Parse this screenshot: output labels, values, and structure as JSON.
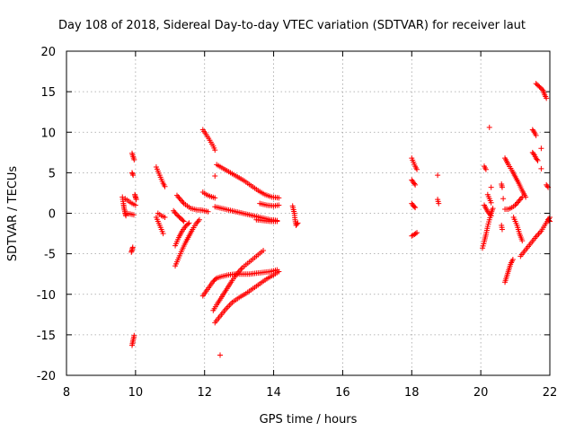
{
  "chart_data": {
    "type": "scatter",
    "title": "Day 108 of 2018, Sidereal Day-to-day VTEC variation (SDTVAR) for receiver laut",
    "xlabel": "GPS time / hours",
    "ylabel": "SDTVAR / TECUs",
    "xlim": [
      8,
      22
    ],
    "ylim": [
      -20,
      20
    ],
    "xticks": [
      8,
      10,
      12,
      14,
      16,
      18,
      20,
      22
    ],
    "yticks": [
      -20,
      -15,
      -10,
      -5,
      0,
      5,
      10,
      15,
      20
    ],
    "grid": true,
    "marker": "plus",
    "color": "#ff0000",
    "series": [
      {
        "name": "tracks",
        "segments": [
          [
            [
              9.62,
              2.0
            ],
            [
              9.65,
              1.2
            ],
            [
              9.67,
              0.6
            ],
            [
              9.7,
              0.0
            ],
            [
              9.72,
              -0.3
            ]
          ],
          [
            [
              9.7,
              1.8
            ],
            [
              9.8,
              1.5
            ],
            [
              9.9,
              1.2
            ],
            [
              10.0,
              1.0
            ]
          ],
          [
            [
              9.75,
              0.0
            ],
            [
              9.85,
              -0.1
            ],
            [
              9.95,
              -0.2
            ]
          ],
          [
            [
              9.88,
              -4.8
            ],
            [
              9.9,
              -4.5
            ],
            [
              9.92,
              -4.2
            ]
          ],
          [
            [
              9.9,
              7.4
            ],
            [
              9.93,
              7.0
            ],
            [
              9.96,
              6.6
            ]
          ],
          [
            [
              9.9,
              5.0
            ],
            [
              9.93,
              4.7
            ]
          ],
          [
            [
              9.9,
              -16.3
            ],
            [
              9.92,
              -15.9
            ],
            [
              9.94,
              -15.5
            ],
            [
              9.96,
              -15.1
            ]
          ],
          [
            [
              9.98,
              2.3
            ],
            [
              10.0,
              2.0
            ],
            [
              10.02,
              1.7
            ]
          ],
          [
            [
              10.6,
              5.7
            ],
            [
              10.65,
              5.2
            ],
            [
              10.7,
              4.7
            ],
            [
              10.75,
              4.2
            ],
            [
              10.8,
              3.7
            ],
            [
              10.85,
              3.3
            ]
          ],
          [
            [
              10.6,
              -0.5
            ],
            [
              10.65,
              -1.0
            ],
            [
              10.7,
              -1.5
            ],
            [
              10.75,
              -2.0
            ],
            [
              10.8,
              -2.5
            ]
          ],
          [
            [
              10.65,
              0.0
            ],
            [
              10.75,
              -0.3
            ],
            [
              10.85,
              -0.5
            ]
          ],
          [
            [
              11.15,
              -6.5
            ],
            [
              11.25,
              -5.5
            ],
            [
              11.35,
              -4.5
            ],
            [
              11.45,
              -3.6
            ],
            [
              11.55,
              -2.8
            ],
            [
              11.65,
              -2.0
            ],
            [
              11.75,
              -1.3
            ],
            [
              11.85,
              -0.8
            ]
          ],
          [
            [
              11.15,
              -4.0
            ],
            [
              11.25,
              -3.0
            ],
            [
              11.35,
              -2.2
            ],
            [
              11.45,
              -1.6
            ],
            [
              11.55,
              -1.2
            ]
          ],
          [
            [
              11.2,
              2.2
            ],
            [
              11.3,
              1.7
            ],
            [
              11.4,
              1.2
            ],
            [
              11.5,
              0.9
            ],
            [
              11.6,
              0.6
            ],
            [
              11.7,
              0.5
            ],
            [
              11.8,
              0.4
            ],
            [
              11.9,
              0.4
            ],
            [
              12.0,
              0.3
            ],
            [
              12.1,
              0.2
            ]
          ],
          [
            [
              11.1,
              0.3
            ],
            [
              11.2,
              -0.2
            ],
            [
              11.3,
              -0.6
            ],
            [
              11.4,
              -1.0
            ]
          ],
          [
            [
              11.95,
              10.3
            ],
            [
              12.05,
              9.7
            ],
            [
              12.15,
              9.0
            ],
            [
              12.25,
              8.3
            ],
            [
              12.3,
              7.8
            ]
          ],
          [
            [
              11.95,
              2.6
            ],
            [
              12.05,
              2.3
            ],
            [
              12.15,
              2.1
            ],
            [
              12.3,
              1.9
            ]
          ],
          [
            [
              11.95,
              -10.2
            ],
            [
              12.05,
              -9.6
            ],
            [
              12.15,
              -9.0
            ],
            [
              12.25,
              -8.4
            ],
            [
              12.35,
              -8.0
            ],
            [
              12.5,
              -7.8
            ],
            [
              12.7,
              -7.6
            ],
            [
              12.9,
              -7.5
            ],
            [
              13.1,
              -7.5
            ],
            [
              13.3,
              -7.5
            ],
            [
              13.5,
              -7.4
            ],
            [
              13.7,
              -7.3
            ],
            [
              13.9,
              -7.2
            ],
            [
              14.1,
              -7.0
            ]
          ],
          [
            [
              12.25,
              -12.0
            ],
            [
              12.35,
              -11.3
            ],
            [
              12.5,
              -10.3
            ],
            [
              12.65,
              -9.3
            ],
            [
              12.8,
              -8.3
            ],
            [
              12.95,
              -7.4
            ],
            [
              13.1,
              -6.7
            ],
            [
              13.3,
              -6.0
            ],
            [
              13.5,
              -5.3
            ],
            [
              13.7,
              -4.6
            ]
          ],
          [
            [
              12.3,
              -13.5
            ],
            [
              12.45,
              -12.7
            ],
            [
              12.6,
              -11.9
            ],
            [
              12.8,
              -11.0
            ],
            [
              13.0,
              -10.4
            ],
            [
              13.2,
              -9.9
            ],
            [
              13.4,
              -9.3
            ],
            [
              13.6,
              -8.7
            ],
            [
              13.8,
              -8.1
            ],
            [
              14.0,
              -7.6
            ],
            [
              14.15,
              -7.2
            ]
          ],
          [
            [
              12.35,
              6.0
            ],
            [
              12.55,
              5.5
            ],
            [
              12.75,
              5.0
            ],
            [
              12.95,
              4.5
            ],
            [
              13.15,
              4.0
            ],
            [
              13.35,
              3.4
            ],
            [
              13.55,
              2.8
            ],
            [
              13.75,
              2.3
            ],
            [
              13.95,
              2.0
            ],
            [
              14.15,
              1.9
            ]
          ],
          [
            [
              12.3,
              0.8
            ],
            [
              12.5,
              0.6
            ],
            [
              12.7,
              0.4
            ],
            [
              12.9,
              0.2
            ],
            [
              13.1,
              0.0
            ],
            [
              13.3,
              -0.2
            ],
            [
              13.5,
              -0.4
            ],
            [
              13.7,
              -0.6
            ],
            [
              13.9,
              -0.8
            ],
            [
              14.1,
              -0.9
            ]
          ],
          [
            [
              12.45,
              -17.5
            ]
          ],
          [
            [
              12.3,
              4.6
            ]
          ],
          [
            [
              13.5,
              -0.8
            ],
            [
              13.7,
              -0.9
            ],
            [
              13.9,
              -1.0
            ],
            [
              14.1,
              -1.0
            ]
          ],
          [
            [
              13.6,
              1.2
            ],
            [
              13.8,
              1.0
            ],
            [
              14.0,
              0.9
            ],
            [
              14.15,
              1.0
            ]
          ],
          [
            [
              14.55,
              0.9
            ],
            [
              14.6,
              0.0
            ],
            [
              14.62,
              -0.8
            ],
            [
              14.65,
              -1.5
            ],
            [
              14.7,
              -1.2
            ]
          ],
          [
            [
              18.0,
              6.8
            ],
            [
              18.05,
              6.3
            ],
            [
              18.1,
              5.8
            ],
            [
              18.15,
              5.4
            ]
          ],
          [
            [
              18.0,
              4.1
            ],
            [
              18.05,
              3.8
            ],
            [
              18.1,
              3.5
            ]
          ],
          [
            [
              18.0,
              1.2
            ],
            [
              18.05,
              0.9
            ],
            [
              18.1,
              0.7
            ]
          ],
          [
            [
              18.0,
              -2.8
            ],
            [
              18.08,
              -2.6
            ],
            [
              18.15,
              -2.4
            ]
          ],
          [
            [
              18.75,
              4.7
            ]
          ],
          [
            [
              18.75,
              1.7
            ],
            [
              18.78,
              1.2
            ]
          ],
          [
            [
              20.05,
              -4.3
            ],
            [
              20.1,
              -3.5
            ],
            [
              20.15,
              -2.6
            ],
            [
              20.2,
              -1.6
            ],
            [
              20.25,
              -0.8
            ],
            [
              20.3,
              0.0
            ],
            [
              20.35,
              0.6
            ]
          ],
          [
            [
              20.1,
              5.8
            ],
            [
              20.15,
              5.4
            ]
          ],
          [
            [
              20.1,
              1.0
            ],
            [
              20.15,
              0.6
            ],
            [
              20.2,
              0.2
            ],
            [
              20.3,
              -0.3
            ]
          ],
          [
            [
              20.2,
              2.3
            ],
            [
              20.25,
              1.8
            ],
            [
              20.3,
              1.3
            ]
          ],
          [
            [
              20.25,
              10.6
            ]
          ],
          [
            [
              20.3,
              3.2
            ]
          ],
          [
            [
              20.6,
              3.6
            ],
            [
              20.62,
              3.2
            ]
          ],
          [
            [
              20.65,
              1.8
            ]
          ],
          [
            [
              20.6,
              -1.5
            ],
            [
              20.62,
              -2.0
            ]
          ],
          [
            [
              20.7,
              6.8
            ],
            [
              20.8,
              6.0
            ],
            [
              20.9,
              5.3
            ],
            [
              21.0,
              4.5
            ],
            [
              21.1,
              3.7
            ],
            [
              21.2,
              2.8
            ],
            [
              21.3,
              2.0
            ]
          ],
          [
            [
              20.7,
              0.5
            ],
            [
              20.8,
              0.5
            ],
            [
              20.9,
              0.7
            ],
            [
              21.0,
              1.0
            ],
            [
              21.1,
              1.5
            ],
            [
              21.2,
              2.0
            ]
          ],
          [
            [
              20.7,
              -8.5
            ],
            [
              20.78,
              -7.4
            ],
            [
              20.86,
              -6.3
            ],
            [
              20.93,
              -5.7
            ]
          ],
          [
            [
              20.95,
              -0.5
            ],
            [
              21.05,
              -1.5
            ],
            [
              21.12,
              -2.5
            ],
            [
              21.2,
              -3.4
            ]
          ],
          [
            [
              21.15,
              -5.3
            ],
            [
              21.3,
              -4.5
            ],
            [
              21.45,
              -3.7
            ],
            [
              21.6,
              -2.9
            ],
            [
              21.75,
              -2.2
            ],
            [
              21.85,
              -1.5
            ],
            [
              21.95,
              -0.8
            ],
            [
              22.0,
              -0.5
            ]
          ],
          [
            [
              21.5,
              10.3
            ],
            [
              21.55,
              10.0
            ],
            [
              21.6,
              9.6
            ]
          ],
          [
            [
              21.5,
              7.5
            ],
            [
              21.55,
              7.2
            ],
            [
              21.6,
              6.8
            ],
            [
              21.65,
              6.5
            ]
          ],
          [
            [
              21.6,
              16.0
            ],
            [
              21.7,
              15.6
            ],
            [
              21.8,
              15.2
            ],
            [
              21.85,
              14.6
            ],
            [
              21.9,
              14.2
            ]
          ],
          [
            [
              21.75,
              8.0
            ]
          ],
          [
            [
              21.75,
              5.5
            ]
          ],
          [
            [
              21.9,
              3.5
            ],
            [
              21.95,
              3.2
            ]
          ],
          [
            [
              21.95,
              -0.8
            ],
            [
              22.0,
              -1.0
            ]
          ]
        ]
      }
    ]
  }
}
